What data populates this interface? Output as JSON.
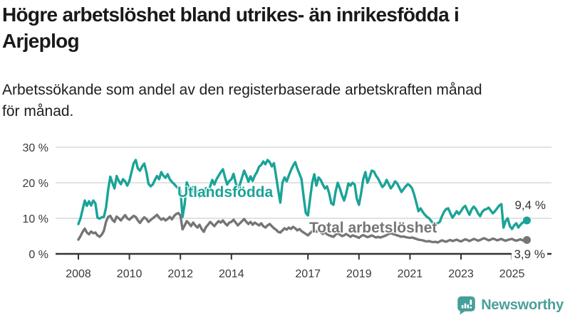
{
  "header": {
    "title_lines": [
      "Högre arbetslöshet bland utrikes- än inrikesfödda i",
      "Arjeplog"
    ],
    "subtitle_lines": [
      "Arbetssökande som andel av den registerbaserade arbetskraften månad",
      "för månad."
    ]
  },
  "footer": {
    "brand": "Newsworthy"
  },
  "colors": {
    "accent_teal": "#1aa398",
    "series_gray": "#757575",
    "axis": "#333333",
    "grid": "#d9d9d9",
    "logo_teal": "#459e9a"
  },
  "chart_data": {
    "type": "line",
    "title": "Högre arbetslöshet bland utrikes- än inrikesfödda i Arjeplog",
    "subtitle": "Arbetssökande som andel av den registerbaserade arbetskraften månad för månad.",
    "x_interval": "monthly",
    "x_start": "2008-01",
    "x_end": "2025-08",
    "ylim": [
      0,
      30
    ],
    "grid": "horizontal",
    "legend_position": "inline-labels",
    "y_ticks": [
      {
        "value": 0,
        "label": "0 %"
      },
      {
        "value": 10,
        "label": "10 %"
      },
      {
        "value": 20,
        "label": "20 %"
      },
      {
        "value": 30,
        "label": "30 %"
      }
    ],
    "x_ticks": [
      {
        "year": 2008,
        "label": "2008"
      },
      {
        "year": 2010,
        "label": "2010"
      },
      {
        "year": 2012,
        "label": "2012"
      },
      {
        "year": 2014,
        "label": "2014"
      },
      {
        "year": 2017,
        "label": "2017"
      },
      {
        "year": 2019,
        "label": "2019"
      },
      {
        "year": 2021,
        "label": "2021"
      },
      {
        "year": 2023,
        "label": "2023"
      },
      {
        "year": 2025,
        "label": "2025"
      }
    ],
    "series": [
      {
        "name": "Utlandsfödda",
        "color": "#1aa398",
        "end_label": "9,4 %",
        "last_value": 9.4,
        "values": [
          8.4,
          10.0,
          12.5,
          15.0,
          13.5,
          14.8,
          13.6,
          15.0,
          14.2,
          10.2,
          9.9,
          10.3,
          10.4,
          13.0,
          18.0,
          21.7,
          20.0,
          18.4,
          21.9,
          20.5,
          19.6,
          21.0,
          20.4,
          19.2,
          20.5,
          23.0,
          25.5,
          26.4,
          24.0,
          23.4,
          24.6,
          25.4,
          23.0,
          19.7,
          19.0,
          19.5,
          20.8,
          21.9,
          21.0,
          23.0,
          22.0,
          21.4,
          22.4,
          21.0,
          20.2,
          19.7,
          19.0,
          18.4,
          18.0,
          10.4,
          14.0,
          20.1,
          18.6,
          17.0,
          18.8,
          16.2,
          17.5,
          16.0,
          17.8,
          16.5,
          18.5,
          16.3,
          19.0,
          20.8,
          19.5,
          21.0,
          22.0,
          23.0,
          23.8,
          21.5,
          19.5,
          20.5,
          21.0,
          22.5,
          20.0,
          18.2,
          19.5,
          21.5,
          23.4,
          22.0,
          20.3,
          21.8,
          20.5,
          22.0,
          23.0,
          24.5,
          25.0,
          26.0,
          25.2,
          26.4,
          25.8,
          24.6,
          25.5,
          22.0,
          18.0,
          14.4,
          20.0,
          21.5,
          20.4,
          22.0,
          23.5,
          24.8,
          25.8,
          24.0,
          22.5,
          21.0,
          16.0,
          11.5,
          10.8,
          15.5,
          20.0,
          22.4,
          19.2,
          21.5,
          20.8,
          19.5,
          18.4,
          19.0,
          17.0,
          14.2,
          13.8,
          17.5,
          20.0,
          18.5,
          16.5,
          15.0,
          17.0,
          19.8,
          19.2,
          20.0,
          19.5,
          15.5,
          13.8,
          17.0,
          21.0,
          23.0,
          20.0,
          21.5,
          23.4,
          23.2,
          22.0,
          21.2,
          20.0,
          18.8,
          19.4,
          20.8,
          19.6,
          18.4,
          19.2,
          20.4,
          19.8,
          18.6,
          17.4,
          18.2,
          19.0,
          19.6,
          19.2,
          18.4,
          16.6,
          14.4,
          12.0,
          12.8,
          11.8,
          11.0,
          10.4,
          10.0,
          9.2,
          8.6,
          8.4,
          8.6,
          9.0,
          10.5,
          11.8,
          12.6,
          12.8,
          11.4,
          10.2,
          11.0,
          12.0,
          11.2,
          12.0,
          13.0,
          13.5,
          12.2,
          11.0,
          12.5,
          13.3,
          12.6,
          11.4,
          10.6,
          11.8,
          12.4,
          12.6,
          13.0,
          12.2,
          11.4,
          12.0,
          12.8,
          13.6,
          14.0,
          7.4,
          9.2,
          10.0,
          7.8,
          7.0,
          8.0,
          8.6,
          7.4,
          8.2,
          8.8,
          9.0,
          9.4
        ]
      },
      {
        "name": "Total arbetslöshet",
        "color": "#757575",
        "end_label": "3,9 %",
        "last_value": 3.9,
        "values": [
          4.0,
          5.0,
          6.2,
          7.1,
          6.0,
          5.5,
          6.3,
          5.8,
          6.0,
          5.2,
          4.8,
          5.4,
          6.5,
          9.0,
          10.4,
          10.7,
          9.6,
          9.0,
          10.5,
          10.0,
          9.4,
          10.2,
          10.9,
          10.0,
          9.6,
          10.2,
          10.7,
          10.4,
          9.4,
          8.7,
          9.6,
          10.3,
          9.8,
          9.0,
          9.5,
          10.0,
          10.5,
          11.0,
          10.2,
          9.6,
          10.0,
          9.4,
          9.8,
          10.4,
          9.7,
          10.6,
          11.2,
          11.5,
          10.8,
          6.9,
          8.0,
          9.2,
          8.6,
          7.8,
          8.8,
          8.0,
          7.4,
          8.2,
          7.0,
          6.2,
          7.5,
          8.2,
          9.0,
          8.4,
          7.8,
          8.6,
          9.2,
          8.8,
          9.4,
          8.6,
          8.0,
          8.8,
          9.0,
          9.6,
          8.8,
          8.0,
          8.6,
          9.2,
          9.8,
          9.0,
          8.4,
          9.0,
          8.2,
          8.8,
          8.4,
          8.0,
          8.6,
          7.8,
          7.4,
          8.0,
          8.4,
          7.8,
          7.2,
          6.8,
          6.2,
          6.0,
          6.6,
          7.2,
          6.8,
          7.4,
          7.0,
          7.6,
          7.2,
          6.6,
          7.0,
          6.4,
          6.0,
          5.6,
          5.2,
          5.8,
          6.4,
          6.8,
          6.2,
          6.6,
          6.0,
          5.6,
          6.0,
          5.5,
          5.2,
          5.0,
          4.8,
          5.4,
          5.8,
          5.4,
          5.0,
          5.2,
          5.6,
          5.2,
          4.8,
          5.2,
          5.0,
          4.8,
          4.5,
          5.0,
          5.3,
          5.0,
          4.7,
          4.9,
          5.2,
          4.9,
          4.6,
          4.8,
          4.6,
          4.8,
          5.0,
          5.3,
          5.6,
          5.8,
          5.6,
          5.4,
          5.2,
          5.0,
          4.8,
          4.9,
          4.7,
          4.6,
          4.5,
          4.6,
          4.4,
          4.2,
          4.0,
          3.9,
          3.8,
          3.6,
          3.5,
          3.6,
          3.4,
          3.3,
          3.4,
          3.2,
          3.5,
          3.8,
          3.6,
          3.4,
          3.7,
          3.9,
          3.6,
          3.8,
          4.0,
          3.7,
          3.5,
          3.8,
          4.1,
          3.9,
          3.6,
          3.9,
          4.2,
          4.0,
          3.7,
          3.9,
          4.2,
          4.4,
          4.1,
          3.8,
          4.0,
          4.3,
          4.1,
          3.8,
          4.0,
          4.2,
          3.9,
          3.7,
          3.9,
          4.1,
          4.2,
          3.9,
          3.7,
          3.9,
          4.1,
          3.8,
          3.7,
          3.9
        ]
      }
    ]
  }
}
